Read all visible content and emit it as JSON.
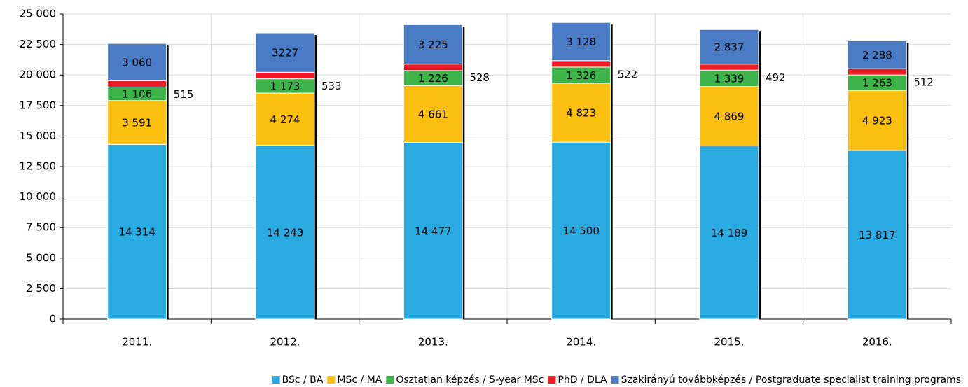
{
  "chart_data": {
    "type": "stacked_bar",
    "categories": [
      "2011.",
      "2012.",
      "2013.",
      "2014.",
      "2015.",
      "2016."
    ],
    "series": [
      {
        "name": "BSc / BA",
        "color": "#29abe2",
        "values": [
          14314,
          14243,
          14477,
          14500,
          14189,
          13817
        ],
        "value_labels": [
          "14 314",
          "14 243",
          "14 477",
          "14 500",
          "14 189",
          "13 817"
        ]
      },
      {
        "name": "MSc / MA",
        "color": "#fbbf0f",
        "values": [
          3591,
          4274,
          4661,
          4823,
          4869,
          4923
        ],
        "value_labels": [
          "3 591",
          "4 274",
          "4 661",
          "4 823",
          "4 869",
          "4 923"
        ]
      },
      {
        "name": "Osztatlan képzés / 5-year MSc",
        "color": "#3cb44a",
        "values": [
          1106,
          1173,
          1226,
          1326,
          1339,
          1263
        ],
        "value_labels": [
          "1 106",
          "1 173",
          "1 226",
          "1 326",
          "1 339",
          "1 263"
        ]
      },
      {
        "name": "PhD / DLA",
        "color": "#ed1c24",
        "values": [
          515,
          533,
          528,
          522,
          492,
          512
        ],
        "value_labels": [
          "515",
          "533",
          "528",
          "522",
          "492",
          "512"
        ]
      },
      {
        "name": "Szakirányú továbbképzés / Postgraduate specialist training programs",
        "color": "#4a7cc6",
        "values": [
          3060,
          3227,
          3225,
          3128,
          2837,
          2288
        ],
        "value_labels": [
          "3 060",
          "3227",
          "3 225",
          "3 128",
          "2 837",
          "2 288"
        ]
      }
    ],
    "ylim": [
      0,
      25000
    ],
    "yticks": [
      0,
      {
        "value": 2500,
        "label": "2 500"
      },
      {
        "value": 5000,
        "label": "5 000"
      },
      {
        "value": 7500,
        "label": "7 500"
      },
      {
        "value": 10000,
        "label": "10 000"
      },
      {
        "value": 12500,
        "label": "12 500"
      },
      {
        "value": 15000,
        "label": "15 000"
      },
      {
        "value": 17500,
        "label": "17 500"
      },
      {
        "value": 20000,
        "label": "20 000"
      },
      {
        "value": 22500,
        "label": "22 500"
      },
      {
        "value": 25000,
        "label": "25 000"
      }
    ],
    "grid": true,
    "legend": "bottom"
  }
}
